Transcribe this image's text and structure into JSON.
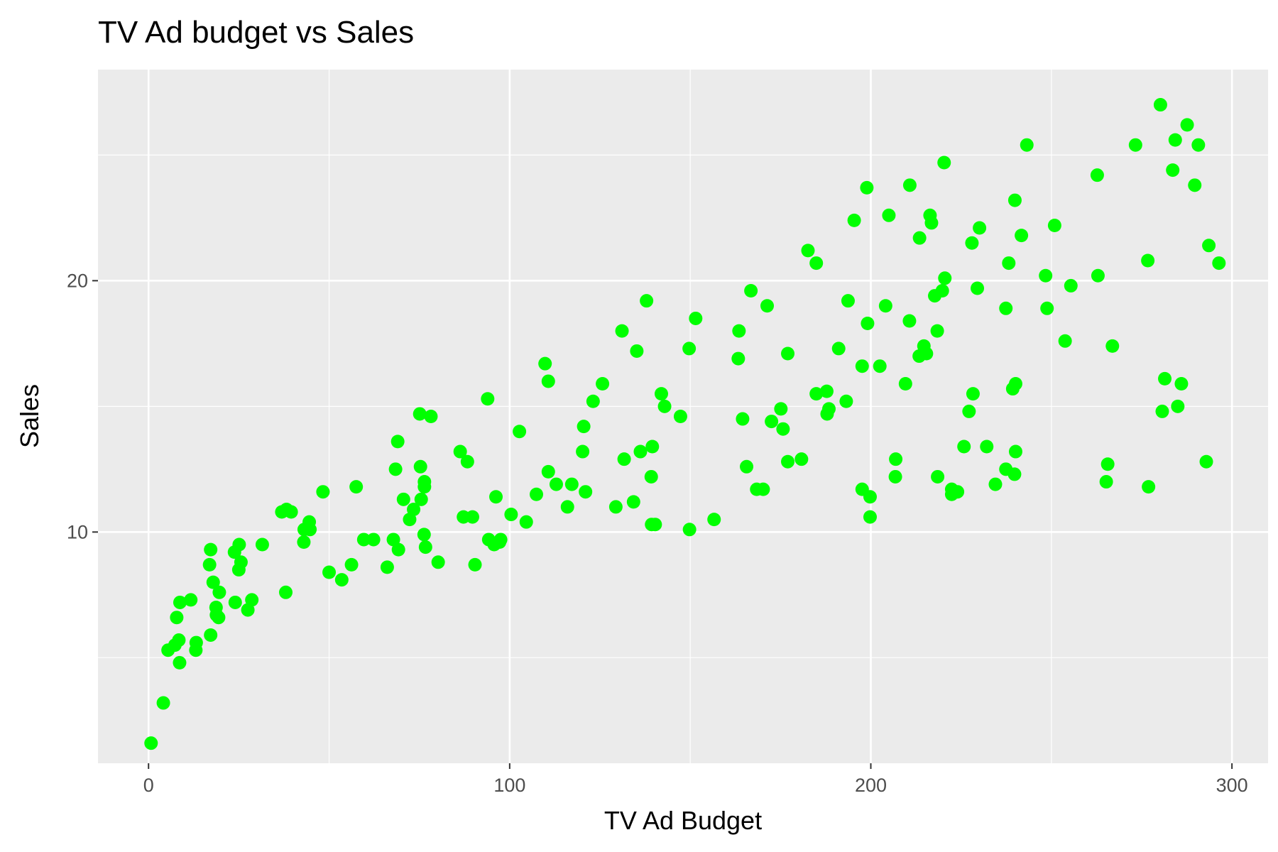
{
  "chart_data": {
    "type": "scatter",
    "title": "TV Ad budget vs Sales",
    "xlabel": "TV Ad Budget",
    "ylabel": "Sales",
    "xlim": [
      -14,
      310
    ],
    "ylim": [
      0.8,
      28.4
    ],
    "x_ticks": [
      0,
      100,
      200,
      300
    ],
    "y_ticks": [
      10,
      20
    ],
    "x_minor": [
      50,
      150,
      250
    ],
    "y_minor": [
      5,
      15,
      25
    ],
    "grid": true,
    "legend": "none",
    "point_color": "#00ff00",
    "panel_color": "#ebebeb",
    "gridline_color": "#ffffff",
    "points": [
      [
        0.7,
        1.6
      ],
      [
        4.1,
        3.2
      ],
      [
        5.4,
        5.3
      ],
      [
        7.3,
        5.5
      ],
      [
        7.8,
        6.6
      ],
      [
        8.4,
        5.7
      ],
      [
        8.6,
        4.8
      ],
      [
        8.7,
        7.2
      ],
      [
        11.7,
        7.3
      ],
      [
        13.1,
        5.3
      ],
      [
        13.2,
        5.6
      ],
      [
        16.9,
        8.7
      ],
      [
        17.2,
        5.9
      ],
      [
        17.2,
        9.3
      ],
      [
        17.9,
        8.0
      ],
      [
        18.7,
        7.0
      ],
      [
        18.8,
        6.7
      ],
      [
        19.4,
        6.6
      ],
      [
        19.6,
        7.6
      ],
      [
        23.8,
        9.2
      ],
      [
        24.0,
        7.2
      ],
      [
        25.0,
        8.5
      ],
      [
        25.1,
        9.5
      ],
      [
        25.6,
        8.8
      ],
      [
        27.5,
        6.9
      ],
      [
        28.6,
        7.3
      ],
      [
        31.5,
        9.5
      ],
      [
        36.9,
        10.8
      ],
      [
        38.0,
        7.6
      ],
      [
        38.2,
        10.9
      ],
      [
        39.5,
        10.8
      ],
      [
        43.0,
        9.6
      ],
      [
        43.1,
        10.1
      ],
      [
        44.5,
        10.4
      ],
      [
        44.7,
        10.1
      ],
      [
        48.3,
        11.6
      ],
      [
        50.0,
        8.4
      ],
      [
        53.5,
        8.1
      ],
      [
        56.2,
        8.7
      ],
      [
        57.5,
        11.8
      ],
      [
        59.6,
        9.7
      ],
      [
        62.3,
        9.7
      ],
      [
        66.1,
        8.6
      ],
      [
        67.8,
        9.7
      ],
      [
        68.4,
        12.5
      ],
      [
        69.0,
        13.6
      ],
      [
        69.2,
        9.3
      ],
      [
        70.6,
        11.3
      ],
      [
        72.3,
        10.5
      ],
      [
        73.4,
        10.9
      ],
      [
        75.1,
        14.7
      ],
      [
        75.3,
        12.6
      ],
      [
        75.5,
        11.3
      ],
      [
        76.3,
        9.9
      ],
      [
        76.4,
        12.0
      ],
      [
        76.4,
        11.8
      ],
      [
        76.7,
        9.4
      ],
      [
        78.2,
        14.6
      ],
      [
        80.2,
        8.8
      ],
      [
        86.3,
        13.2
      ],
      [
        87.2,
        10.6
      ],
      [
        88.3,
        12.8
      ],
      [
        89.7,
        10.6
      ],
      [
        90.4,
        8.7
      ],
      [
        93.9,
        15.3
      ],
      [
        94.2,
        9.7
      ],
      [
        95.7,
        9.5
      ],
      [
        96.2,
        11.4
      ],
      [
        97.2,
        9.6
      ],
      [
        97.5,
        9.7
      ],
      [
        100.4,
        10.7
      ],
      [
        102.7,
        14.0
      ],
      [
        104.6,
        10.4
      ],
      [
        107.4,
        11.5
      ],
      [
        109.8,
        16.7
      ],
      [
        110.7,
        12.4
      ],
      [
        110.7,
        16.0
      ],
      [
        112.9,
        11.9
      ],
      [
        116.0,
        11.0
      ],
      [
        117.2,
        11.9
      ],
      [
        120.2,
        13.2
      ],
      [
        120.5,
        14.2
      ],
      [
        121.0,
        11.6
      ],
      [
        123.1,
        15.2
      ],
      [
        125.7,
        15.9
      ],
      [
        129.4,
        11.0
      ],
      [
        131.1,
        18.0
      ],
      [
        131.7,
        12.9
      ],
      [
        134.3,
        11.2
      ],
      [
        135.2,
        17.2
      ],
      [
        136.2,
        13.2
      ],
      [
        137.9,
        19.2
      ],
      [
        139.2,
        12.2
      ],
      [
        139.3,
        10.3
      ],
      [
        139.5,
        13.4
      ],
      [
        140.3,
        10.3
      ],
      [
        142.0,
        15.5
      ],
      [
        142.9,
        15.0
      ],
      [
        147.3,
        14.6
      ],
      [
        149.7,
        17.3
      ],
      [
        149.8,
        10.1
      ],
      [
        151.5,
        18.5
      ],
      [
        156.6,
        10.5
      ],
      [
        163.3,
        16.9
      ],
      [
        163.5,
        18.0
      ],
      [
        164.5,
        14.5
      ],
      [
        165.6,
        12.6
      ],
      [
        166.8,
        19.6
      ],
      [
        168.4,
        11.7
      ],
      [
        170.2,
        11.7
      ],
      [
        171.3,
        19.0
      ],
      [
        172.5,
        14.4
      ],
      [
        175.1,
        14.9
      ],
      [
        175.7,
        14.1
      ],
      [
        177.0,
        12.8
      ],
      [
        177.0,
        17.1
      ],
      [
        180.8,
        12.9
      ],
      [
        182.6,
        21.2
      ],
      [
        184.9,
        15.5
      ],
      [
        184.9,
        20.7
      ],
      [
        187.8,
        15.6
      ],
      [
        187.9,
        14.7
      ],
      [
        188.4,
        14.9
      ],
      [
        191.1,
        17.3
      ],
      [
        193.2,
        15.2
      ],
      [
        193.7,
        19.2
      ],
      [
        195.4,
        22.4
      ],
      [
        197.6,
        11.7
      ],
      [
        197.6,
        16.6
      ],
      [
        198.9,
        23.7
      ],
      [
        199.1,
        18.3
      ],
      [
        199.8,
        10.6
      ],
      [
        199.8,
        11.4
      ],
      [
        202.5,
        16.6
      ],
      [
        204.1,
        19.0
      ],
      [
        205.0,
        22.6
      ],
      [
        206.8,
        12.2
      ],
      [
        206.9,
        12.9
      ],
      [
        209.6,
        15.9
      ],
      [
        210.7,
        18.4
      ],
      [
        210.8,
        23.8
      ],
      [
        213.4,
        17.0
      ],
      [
        213.5,
        21.7
      ],
      [
        214.7,
        17.4
      ],
      [
        215.4,
        17.1
      ],
      [
        216.4,
        22.6
      ],
      [
        216.8,
        22.3
      ],
      [
        217.7,
        19.4
      ],
      [
        218.4,
        18.0
      ],
      [
        218.5,
        12.2
      ],
      [
        219.8,
        19.6
      ],
      [
        220.3,
        24.7
      ],
      [
        220.5,
        20.1
      ],
      [
        222.4,
        11.7
      ],
      [
        222.4,
        11.5
      ],
      [
        224.0,
        11.6
      ],
      [
        225.8,
        13.4
      ],
      [
        227.2,
        14.8
      ],
      [
        228.0,
        21.5
      ],
      [
        228.3,
        15.5
      ],
      [
        229.5,
        19.7
      ],
      [
        230.1,
        22.1
      ],
      [
        232.1,
        13.4
      ],
      [
        234.5,
        11.9
      ],
      [
        237.4,
        12.5
      ],
      [
        237.4,
        18.9
      ],
      [
        238.2,
        20.7
      ],
      [
        239.3,
        15.7
      ],
      [
        239.8,
        12.3
      ],
      [
        239.9,
        23.2
      ],
      [
        240.1,
        13.2
      ],
      [
        240.1,
        15.9
      ],
      [
        241.7,
        21.8
      ],
      [
        243.2,
        25.4
      ],
      [
        248.4,
        20.2
      ],
      [
        248.8,
        18.9
      ],
      [
        250.9,
        22.2
      ],
      [
        253.8,
        17.6
      ],
      [
        255.4,
        19.8
      ],
      [
        262.7,
        24.2
      ],
      [
        262.9,
        20.2
      ],
      [
        265.2,
        12.0
      ],
      [
        265.6,
        12.7
      ],
      [
        266.9,
        17.4
      ],
      [
        276.7,
        20.8
      ],
      [
        276.9,
        11.8
      ],
      [
        280.2,
        27.0
      ],
      [
        280.7,
        14.8
      ],
      [
        281.4,
        16.1
      ],
      [
        283.6,
        24.4
      ],
      [
        284.3,
        25.6
      ],
      [
        285.0,
        15.0
      ],
      [
        286.0,
        15.9
      ],
      [
        287.6,
        26.2
      ],
      [
        290.7,
        25.4
      ],
      [
        292.9,
        12.8
      ],
      [
        293.6,
        21.4
      ],
      [
        296.4,
        20.7
      ],
      [
        273.3,
        25.4
      ],
      [
        289.7,
        23.8
      ]
    ]
  }
}
